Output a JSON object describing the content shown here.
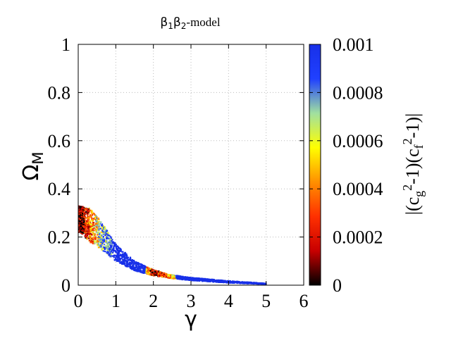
{
  "chart_data": {
    "type": "scatter",
    "title": {
      "beta1": "β",
      "sub1": "1",
      "beta2": "β",
      "sub2": "2",
      "suffix": "-model"
    },
    "xlabel": "γ",
    "ylabel": {
      "main": "Ω",
      "sub": "M"
    },
    "xlim": [
      0,
      6
    ],
    "ylim": [
      0,
      1
    ],
    "grid": true,
    "x_ticks": [
      "0",
      "1",
      "2",
      "3",
      "4",
      "5",
      "6"
    ],
    "y_ticks": [
      "0",
      "0.2",
      "0.4",
      "0.6",
      "0.8",
      "1"
    ],
    "colorbar": {
      "range": [
        0,
        0.001
      ],
      "ticks": [
        "0",
        "0.0002",
        "0.0004",
        "0.0006",
        "0.0008",
        "0.001"
      ],
      "label": {
        "p1": "|(c",
        "sub1": "g",
        "sup1": "2",
        "p2": "-1)(c",
        "sub2": "f",
        "sup2": "2",
        "p3": "-1)|"
      },
      "colors": [
        "#000000",
        "#c80000",
        "#ff3000",
        "#ff9000",
        "#ffff00",
        "#a0e0a0",
        "#2040ff",
        "#1830e8"
      ]
    },
    "points_description_band": [
      {
        "x": 0.05,
        "y_low": 0.22,
        "y_high": 0.33,
        "value": 5e-05
      },
      {
        "x": 0.3,
        "y_low": 0.18,
        "y_high": 0.32,
        "value": 0.0003
      },
      {
        "x": 0.6,
        "y_low": 0.15,
        "y_high": 0.27,
        "value": 0.0007
      },
      {
        "x": 1.0,
        "y_low": 0.1,
        "y_high": 0.17,
        "value": 0.001
      },
      {
        "x": 1.5,
        "y_low": 0.06,
        "y_high": 0.1,
        "value": 0.001
      },
      {
        "x": 2.0,
        "y_low": 0.04,
        "y_high": 0.065,
        "value": 0.0001
      },
      {
        "x": 2.4,
        "y_low": 0.03,
        "y_high": 0.045,
        "value": 0.0004
      },
      {
        "x": 3.0,
        "y_low": 0.02,
        "y_high": 0.032,
        "value": 0.001
      },
      {
        "x": 4.0,
        "y_low": 0.01,
        "y_high": 0.018,
        "value": 0.001
      },
      {
        "x": 5.0,
        "y_low": 0.004,
        "y_high": 0.008,
        "value": 0.001
      }
    ]
  }
}
